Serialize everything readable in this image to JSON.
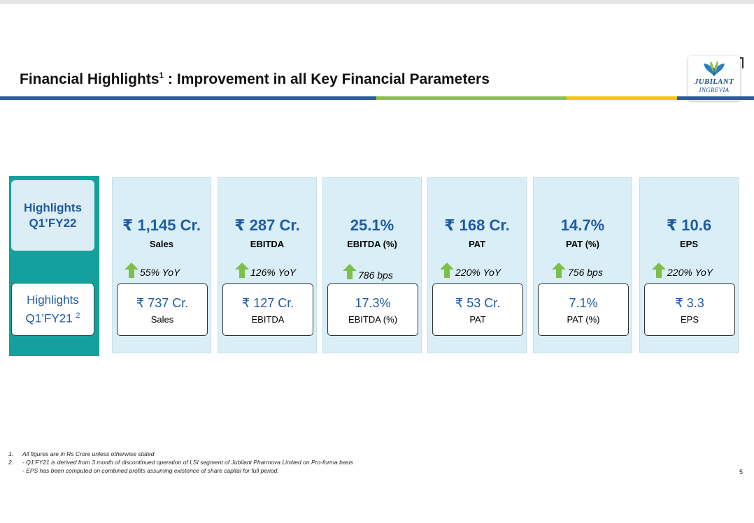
{
  "title": {
    "main": "Financial Highlights",
    "sup": "1",
    "rest": " : Improvement in all Key Financial Parameters"
  },
  "logo": {
    "line1": "JUBILANT",
    "line2": "INGREVIA"
  },
  "colors": {
    "accent_blue": "#1f5ca0",
    "teal": "#14a19e",
    "card_bg": "#d9eef7",
    "arrow_green": "#7cc04a",
    "rule_blue": "#2a5a9c",
    "rule_green": "#8cc04a",
    "rule_yellow": "#f5c518"
  },
  "side": {
    "current": {
      "line1": "Highlights",
      "line2": "Q1’FY22"
    },
    "previous": {
      "line1": "Highlights",
      "line2": "Q1’FY21",
      "sup": "2"
    }
  },
  "metrics": [
    {
      "current_value": "₹ 1,145 Cr.",
      "current_label": "Sales",
      "change": "55% YoY",
      "arrow_icon": "up-arrow-icon",
      "previous_value": "₹ 737 Cr.",
      "previous_label": "Sales"
    },
    {
      "current_value": "₹ 287 Cr.",
      "current_label": "EBITDA",
      "change": "126% YoY",
      "arrow_icon": "up-arrow-icon",
      "previous_value": "₹ 127 Cr.",
      "previous_label": "EBITDA"
    },
    {
      "current_value": "25.1%",
      "current_label": "EBITDA (%)",
      "change": "786 bps",
      "arrow_icon": "up-arrow-icon",
      "previous_value": "17.3%",
      "previous_label": "EBITDA (%)"
    },
    {
      "current_value": "₹ 168 Cr.",
      "current_label": "PAT",
      "change": "220% YoY",
      "arrow_icon": "up-arrow-icon",
      "previous_value": "₹ 53 Cr.",
      "previous_label": "PAT"
    },
    {
      "current_value": "14.7%",
      "current_label": "PAT (%)",
      "change": "756 bps",
      "arrow_icon": "up-arrow-icon",
      "previous_value": "7.1%",
      "previous_label": "PAT (%)"
    },
    {
      "current_value": "₹ 10.6",
      "current_label": "EPS",
      "change": "220% YoY",
      "arrow_icon": "up-arrow-icon",
      "previous_value": "₹ 3.3",
      "previous_label": "EPS"
    }
  ],
  "footnotes": {
    "n1": "1.",
    "f1": "All figures are in Rs Crore unless otherwise stated",
    "n2": "2.",
    "f2a": "- Q1’FY21 is derived from 3 month of discontinued operation of LSI segment  of Jubilant Pharmova Limited on Pro-forma basis",
    "f2b": "- EPS has been computed on combined profits assuming existence of share capital for full period."
  },
  "page_number": "5"
}
